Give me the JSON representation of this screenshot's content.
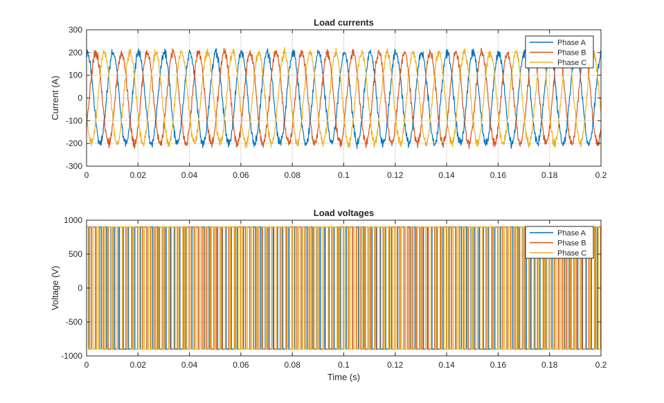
{
  "figure": {
    "background": "#ffffff",
    "series_colors": [
      "#0072BD",
      "#D95319",
      "#EDB120"
    ]
  },
  "chart_data": [
    {
      "type": "line",
      "title": "Load currents",
      "xlabel": "",
      "ylabel": "Current (A)",
      "xlim": [
        0,
        0.2
      ],
      "ylim": [
        -300,
        300
      ],
      "xticks": [
        0,
        0.02,
        0.04,
        0.06,
        0.08,
        0.1,
        0.12,
        0.14,
        0.16,
        0.18,
        0.2
      ],
      "xtick_labels": [
        "0",
        "0.02",
        "0.04",
        "0.06",
        "0.08",
        "0.1",
        "0.12",
        "0.14",
        "0.16",
        "0.18",
        "0.2"
      ],
      "yticks": [
        -300,
        -200,
        -100,
        0,
        100,
        200,
        300
      ],
      "ytick_labels": [
        "-300",
        "-200",
        "-100",
        "0",
        "100",
        "200",
        "300"
      ],
      "grid": true,
      "legend_position": "top-right",
      "waveform": {
        "shape": "sinusoid",
        "amplitude": 200,
        "frequency_hz": 100,
        "ripple": 25
      },
      "series": [
        {
          "name": "Phase A",
          "color": "#0072BD",
          "phase_deg": 80
        },
        {
          "name": "Phase B",
          "color": "#D95319",
          "phase_deg": -40
        },
        {
          "name": "Phase C",
          "color": "#EDB120",
          "phase_deg": 200
        }
      ]
    },
    {
      "type": "line",
      "title": "Load voltages",
      "xlabel": "Time (s)",
      "ylabel": "Voltage (V)",
      "xlim": [
        0,
        0.2
      ],
      "ylim": [
        -1000,
        1000
      ],
      "xticks": [
        0,
        0.02,
        0.04,
        0.06,
        0.08,
        0.1,
        0.12,
        0.14,
        0.16,
        0.18,
        0.2
      ],
      "xtick_labels": [
        "0",
        "0.02",
        "0.04",
        "0.06",
        "0.08",
        "0.1",
        "0.12",
        "0.14",
        "0.16",
        "0.18",
        "0.2"
      ],
      "yticks": [
        -1000,
        -500,
        0,
        500,
        1000
      ],
      "ytick_labels": [
        "-1000",
        "-500",
        "0",
        "500",
        "1000"
      ],
      "grid": true,
      "legend_position": "top-right",
      "waveform": {
        "shape": "pwm",
        "high": 900,
        "low": -900,
        "switching_period_s": 0.002
      },
      "series": [
        {
          "name": "Phase A",
          "color": "#0072BD"
        },
        {
          "name": "Phase B",
          "color": "#D95319"
        },
        {
          "name": "Phase C",
          "color": "#EDB120"
        }
      ]
    }
  ]
}
